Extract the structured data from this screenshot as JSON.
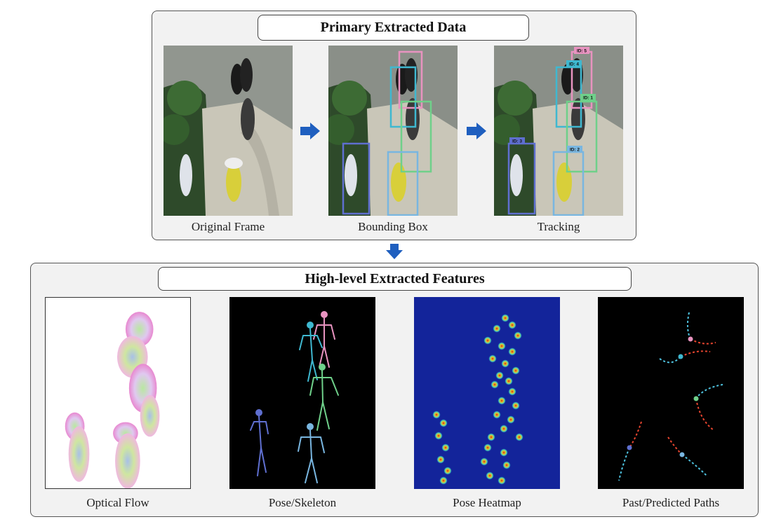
{
  "top_panel": {
    "title": "Primary Extracted Data",
    "frames": [
      {
        "caption": "Original Frame"
      },
      {
        "caption": "Bounding Box"
      },
      {
        "caption": "Tracking"
      }
    ],
    "track_labels": [
      "ID: 5",
      "ID: 4",
      "ID: 1",
      "ID: 3",
      "ID: 2"
    ]
  },
  "bottom_panel": {
    "title": "High-level Extracted Features",
    "features": [
      {
        "caption": "Optical Flow"
      },
      {
        "caption": "Pose/Skeleton"
      },
      {
        "caption": "Pose Heatmap"
      },
      {
        "caption": "Past/Predicted Paths"
      }
    ]
  },
  "colors": {
    "arrow": "#1f5fbf",
    "id5": "#e893c0",
    "id4": "#3fb8d0",
    "id1": "#6fd08a",
    "id3": "#5f6fd0",
    "id2": "#79b6e0",
    "heatmap_bg": "#13249a",
    "past_path": "#4ec3e0",
    "predicted_path": "#e8452f"
  }
}
